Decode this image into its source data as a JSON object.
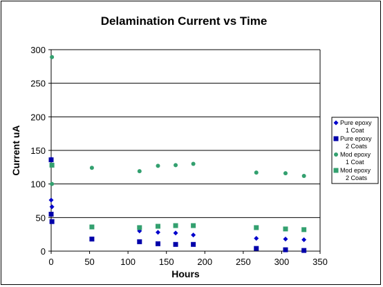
{
  "chart_data": {
    "type": "scatter",
    "title": "Delamination Current vs Time",
    "xlabel": "Hours",
    "ylabel": "Current uA",
    "xlim": [
      0,
      350
    ],
    "ylim": [
      0,
      300
    ],
    "x_ticks": [
      0,
      50,
      100,
      150,
      200,
      250,
      300,
      350
    ],
    "y_ticks": [
      0,
      50,
      100,
      150,
      200,
      250,
      300
    ],
    "grid": "horizontal",
    "legend_position": "right",
    "series": [
      {
        "name": [
          "Pure epoxy",
          "1 Coat"
        ],
        "marker": "diamond",
        "color": "#0000CC",
        "points": [
          [
            0,
            137
          ],
          [
            0,
            76
          ],
          [
            1,
            66
          ],
          [
            115,
            30
          ],
          [
            139,
            28
          ],
          [
            162,
            27
          ],
          [
            185,
            24
          ],
          [
            267,
            19
          ],
          [
            305,
            18
          ],
          [
            329,
            17
          ]
        ]
      },
      {
        "name": [
          "Pure epoxy",
          "2 Coats"
        ],
        "marker": "square",
        "color": "#0000AA",
        "points": [
          [
            0,
            136
          ],
          [
            0,
            55
          ],
          [
            1,
            44
          ],
          [
            53,
            18
          ],
          [
            115,
            14
          ],
          [
            139,
            11
          ],
          [
            162,
            10
          ],
          [
            185,
            10
          ],
          [
            267,
            4
          ],
          [
            305,
            2
          ],
          [
            329,
            1
          ]
        ]
      },
      {
        "name": [
          "Mod epoxy",
          "1 Coat"
        ],
        "marker": "circle",
        "color": "#33A06F",
        "points": [
          [
            1,
            289
          ],
          [
            1,
            100
          ],
          [
            53,
            124
          ],
          [
            115,
            119
          ],
          [
            139,
            127
          ],
          [
            162,
            128
          ],
          [
            185,
            130
          ],
          [
            267,
            117
          ],
          [
            305,
            116
          ],
          [
            329,
            112
          ]
        ]
      },
      {
        "name": [
          "Mod epoxy",
          "2 Coats"
        ],
        "marker": "square",
        "color": "#33A06F",
        "points": [
          [
            1,
            128
          ],
          [
            53,
            36
          ],
          [
            115,
            35
          ],
          [
            139,
            37
          ],
          [
            162,
            38
          ],
          [
            185,
            38
          ],
          [
            267,
            35
          ],
          [
            305,
            33
          ],
          [
            329,
            32
          ]
        ]
      }
    ]
  }
}
